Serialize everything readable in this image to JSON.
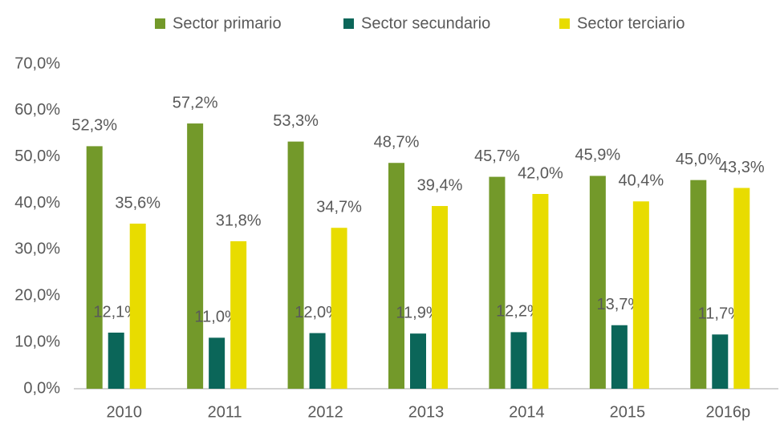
{
  "chart_data": {
    "type": "bar",
    "categories": [
      "2010",
      "2011",
      "2012",
      "2013",
      "2014",
      "2015",
      "2016p"
    ],
    "series": [
      {
        "name": "Sector primario",
        "color": "#73992a",
        "values": [
          52.3,
          57.2,
          53.3,
          48.7,
          45.7,
          45.9,
          45.0
        ],
        "value_labels": [
          "52,3%",
          "57,2%",
          "53,3%",
          "48,7%",
          "45,7%",
          "45,9%",
          "45,0%"
        ]
      },
      {
        "name": "Sector secundario",
        "color": "#0b6659",
        "values": [
          12.1,
          11.0,
          12.0,
          11.9,
          12.2,
          13.7,
          11.7
        ],
        "value_labels": [
          "12,1%",
          "11,0%",
          "12,0%",
          "11,9%",
          "12,2%",
          "13,7%",
          "11,7%"
        ]
      },
      {
        "name": "Sector terciario",
        "color": "#e8dc00",
        "values": [
          35.6,
          31.8,
          34.7,
          39.4,
          42.0,
          40.4,
          43.3
        ],
        "value_labels": [
          "35,6%",
          "31,8%",
          "34,7%",
          "39,4%",
          "42,0%",
          "40,4%",
          "43,3%"
        ]
      }
    ],
    "ylim": [
      0,
      70
    ],
    "yticks": [
      {
        "value": 0,
        "label": "0,0%"
      },
      {
        "value": 10,
        "label": "10,0%"
      },
      {
        "value": 20,
        "label": "20,0%"
      },
      {
        "value": 30,
        "label": "30,0%"
      },
      {
        "value": 40,
        "label": "40,0%"
      },
      {
        "value": 50,
        "label": "50,0%"
      },
      {
        "value": 60,
        "label": "60,0%"
      },
      {
        "value": 70,
        "label": "70,0%"
      }
    ],
    "grid": false,
    "legend": "top"
  }
}
